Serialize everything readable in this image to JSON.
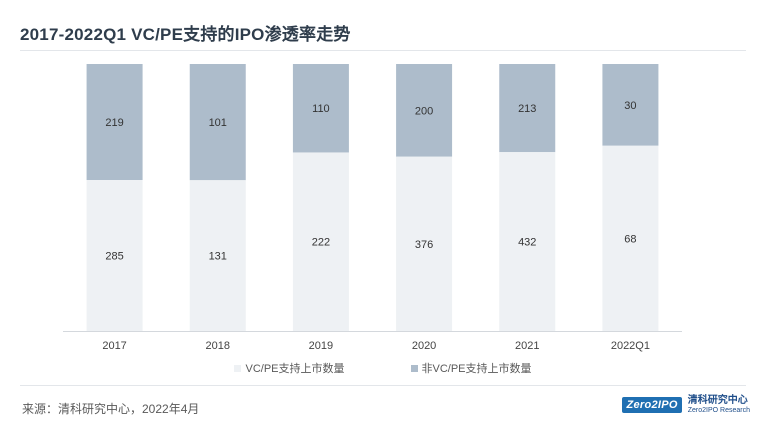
{
  "page": {
    "title": "2017-2022Q1 VC/PE支持的IPO渗透率走势",
    "source": "来源：清科研究中心，2022年4月"
  },
  "logo": {
    "badge": "Zero2IPO",
    "cn": "清科研究中心",
    "en": "Zero2IPO Research"
  },
  "colors": {
    "vcpe": "#eef1f4",
    "non_vcpe": "#adbccb",
    "axis": "#d4d8dd",
    "label": "#333333",
    "tick": "#444444"
  },
  "chart_data": {
    "type": "bar",
    "stacked": true,
    "normalized": true,
    "title": "2017-2022Q1 VC/PE支持的IPO渗透率走势",
    "categories": [
      "2017",
      "2018",
      "2019",
      "2020",
      "2021",
      "2022Q1"
    ],
    "series": [
      {
        "name": "VC/PE支持上市数量",
        "values": [
          285,
          131,
          222,
          376,
          432,
          68
        ]
      },
      {
        "name": "非VC/PE支持上市数量",
        "values": [
          219,
          101,
          110,
          200,
          213,
          30
        ]
      }
    ],
    "legend_position": "bottom",
    "grid": false
  }
}
